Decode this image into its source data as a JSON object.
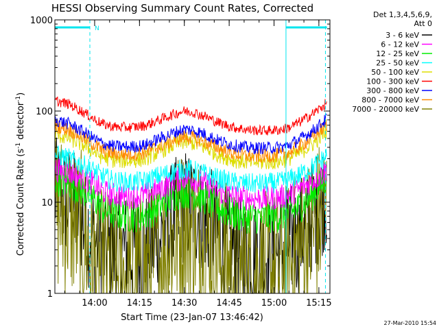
{
  "chart_data": {
    "type": "line",
    "title": "HESSI Observing Summary Count Rates, Corrected",
    "xlabel": "Start Time (23-Jan-07 13:46:42)",
    "ylabel_main": "Corrected Count Rate (s",
    "ylabel_sup1": "-1",
    "ylabel_mid": " detector",
    "ylabel_sup2": "-1",
    "ylabel_end": ")",
    "yscale": "log",
    "ylim": [
      1,
      1000
    ],
    "xlim_minutes": [
      0,
      92
    ],
    "y_ticks": [
      {
        "value": 1,
        "label": "1"
      },
      {
        "value": 10,
        "label": "10"
      },
      {
        "value": 100,
        "label": "100"
      },
      {
        "value": 1000,
        "label": "1000"
      }
    ],
    "x_ticks": [
      {
        "minute": 13.3,
        "label": "14:00"
      },
      {
        "minute": 28.3,
        "label": "14:15"
      },
      {
        "minute": 43.3,
        "label": "14:30"
      },
      {
        "minute": 58.3,
        "label": "14:45"
      },
      {
        "minute": 73.3,
        "label": "15:00"
      },
      {
        "minute": 88.3,
        "label": "15:15"
      }
    ],
    "legend": {
      "position": "top-right",
      "header1": "Det 1,3,4,5,6,9,",
      "header2": "Att 0",
      "entries": [
        {
          "label": "3 - 6 keV",
          "color": "#000000"
        },
        {
          "label": "6 - 12 keV",
          "color": "#ff00ff"
        },
        {
          "label": "12 - 25 keV",
          "color": "#00ee00"
        },
        {
          "label": "25 - 50 keV",
          "color": "#00ffff"
        },
        {
          "label": "50 - 100 keV",
          "color": "#dddd00"
        },
        {
          "label": "100 - 300 keV",
          "color": "#ff0000"
        },
        {
          "label": "300 - 800 keV",
          "color": "#0000ff"
        },
        {
          "label": "800 - 7000 keV",
          "color": "#ff8800"
        },
        {
          "label": "7000 - 20000 keV",
          "color": "#808000"
        }
      ]
    },
    "night_markers": {
      "color": "#00e5ee",
      "label": "N",
      "night_start_minute": 11.7,
      "night_end_minute": 77.3,
      "left_bar": [
        0,
        11.7
      ],
      "right_bar": [
        77.3,
        91
      ],
      "right_dash_minute": 90.5
    },
    "series": [
      {
        "name": "3 - 6 keV",
        "color": "#000000",
        "noise": 0.28,
        "points": [
          [
            0,
            12
          ],
          [
            5,
            10
          ],
          [
            10,
            6
          ],
          [
            13,
            4
          ],
          [
            16,
            3
          ],
          [
            20,
            3
          ],
          [
            25,
            3
          ],
          [
            30,
            3
          ],
          [
            35,
            4
          ],
          [
            40,
            7
          ],
          [
            43,
            9
          ],
          [
            46,
            9
          ],
          [
            50,
            7
          ],
          [
            55,
            4
          ],
          [
            60,
            3
          ],
          [
            65,
            2.6
          ],
          [
            70,
            2.6
          ],
          [
            75,
            3
          ],
          [
            78,
            3.5
          ],
          [
            82,
            4.5
          ],
          [
            86,
            7
          ],
          [
            90,
            12
          ],
          [
            91,
            13
          ]
        ]
      },
      {
        "name": "7000 - 20000 keV",
        "color": "#808000",
        "noise": 0.4,
        "points": [
          [
            0,
            8
          ],
          [
            5,
            7
          ],
          [
            10,
            4
          ],
          [
            13,
            2
          ],
          [
            16,
            1.7
          ],
          [
            20,
            1.6
          ],
          [
            25,
            1.6
          ],
          [
            30,
            1.7
          ],
          [
            35,
            2.5
          ],
          [
            40,
            4
          ],
          [
            43,
            5.5
          ],
          [
            46,
            5
          ],
          [
            50,
            4
          ],
          [
            55,
            2.5
          ],
          [
            60,
            1.8
          ],
          [
            65,
            1.6
          ],
          [
            70,
            1.6
          ],
          [
            75,
            1.8
          ],
          [
            78,
            2.2
          ],
          [
            82,
            3
          ],
          [
            86,
            4.5
          ],
          [
            90,
            7.5
          ],
          [
            91,
            9
          ]
        ]
      },
      {
        "name": "12 - 25 keV",
        "color": "#00ee00",
        "noise": 0.08,
        "points": [
          [
            0,
            18
          ],
          [
            5,
            16
          ],
          [
            10,
            13
          ],
          [
            13,
            11
          ],
          [
            16,
            8.5
          ],
          [
            20,
            7.5
          ],
          [
            25,
            7
          ],
          [
            30,
            7.2
          ],
          [
            35,
            9
          ],
          [
            40,
            12
          ],
          [
            43,
            13
          ],
          [
            46,
            12.5
          ],
          [
            50,
            11
          ],
          [
            55,
            8.5
          ],
          [
            60,
            7.3
          ],
          [
            65,
            6.8
          ],
          [
            70,
            6.8
          ],
          [
            75,
            7
          ],
          [
            78,
            7.5
          ],
          [
            82,
            9
          ],
          [
            86,
            12
          ],
          [
            90,
            17
          ],
          [
            91,
            19
          ]
        ]
      },
      {
        "name": "6 - 12 keV",
        "color": "#ff00ff",
        "noise": 0.06,
        "points": [
          [
            0,
            23
          ],
          [
            5,
            21
          ],
          [
            10,
            18
          ],
          [
            13,
            16
          ],
          [
            16,
            13
          ],
          [
            20,
            12
          ],
          [
            25,
            11.5
          ],
          [
            30,
            12
          ],
          [
            35,
            14
          ],
          [
            40,
            17
          ],
          [
            43,
            18.5
          ],
          [
            46,
            18
          ],
          [
            50,
            16
          ],
          [
            55,
            13
          ],
          [
            60,
            11.5
          ],
          [
            65,
            11
          ],
          [
            70,
            11
          ],
          [
            75,
            11.2
          ],
          [
            78,
            12
          ],
          [
            82,
            14
          ],
          [
            86,
            17
          ],
          [
            90,
            21
          ],
          [
            91,
            23
          ]
        ]
      },
      {
        "name": "25 - 50 keV",
        "color": "#00ffff",
        "noise": 0.05,
        "points": [
          [
            0,
            33
          ],
          [
            5,
            30
          ],
          [
            10,
            25
          ],
          [
            13,
            22
          ],
          [
            16,
            19
          ],
          [
            20,
            17
          ],
          [
            25,
            16.5
          ],
          [
            30,
            17
          ],
          [
            35,
            19.5
          ],
          [
            40,
            22
          ],
          [
            43,
            23
          ],
          [
            46,
            22.5
          ],
          [
            50,
            20.5
          ],
          [
            55,
            18
          ],
          [
            60,
            16.5
          ],
          [
            65,
            16
          ],
          [
            70,
            16
          ],
          [
            75,
            16.5
          ],
          [
            78,
            17.5
          ],
          [
            82,
            20
          ],
          [
            86,
            24
          ],
          [
            90,
            30
          ],
          [
            91,
            33
          ]
        ]
      },
      {
        "name": "50 - 100 keV",
        "color": "#dddd00",
        "noise": 0.04,
        "points": [
          [
            0,
            56
          ],
          [
            5,
            50
          ],
          [
            10,
            42
          ],
          [
            13,
            36
          ],
          [
            16,
            31
          ],
          [
            20,
            29
          ],
          [
            25,
            28.5
          ],
          [
            30,
            30
          ],
          [
            35,
            36
          ],
          [
            40,
            43
          ],
          [
            43,
            46
          ],
          [
            46,
            45
          ],
          [
            50,
            40
          ],
          [
            55,
            33
          ],
          [
            60,
            29
          ],
          [
            65,
            27.5
          ],
          [
            70,
            27.5
          ],
          [
            75,
            28
          ],
          [
            78,
            30
          ],
          [
            82,
            35
          ],
          [
            86,
            43
          ],
          [
            90,
            56
          ],
          [
            91,
            62
          ]
        ]
      },
      {
        "name": "800 - 7000 keV",
        "color": "#ff8800",
        "noise": 0.035,
        "points": [
          [
            0,
            70
          ],
          [
            5,
            62
          ],
          [
            10,
            50
          ],
          [
            13,
            43
          ],
          [
            16,
            37
          ],
          [
            20,
            34
          ],
          [
            25,
            33.5
          ],
          [
            30,
            35
          ],
          [
            35,
            41
          ],
          [
            40,
            48
          ],
          [
            43,
            52
          ],
          [
            46,
            51
          ],
          [
            50,
            46
          ],
          [
            55,
            39
          ],
          [
            60,
            34
          ],
          [
            65,
            32
          ],
          [
            70,
            32
          ],
          [
            75,
            33
          ],
          [
            78,
            35
          ],
          [
            82,
            41
          ],
          [
            86,
            51
          ],
          [
            90,
            66
          ],
          [
            91,
            72
          ]
        ]
      },
      {
        "name": "300 - 800 keV",
        "color": "#0000ff",
        "noise": 0.03,
        "points": [
          [
            0,
            80
          ],
          [
            5,
            72
          ],
          [
            10,
            58
          ],
          [
            13,
            50
          ],
          [
            16,
            44
          ],
          [
            20,
            41
          ],
          [
            25,
            40.5
          ],
          [
            30,
            42
          ],
          [
            35,
            50
          ],
          [
            40,
            58
          ],
          [
            43,
            63
          ],
          [
            46,
            62
          ],
          [
            50,
            56
          ],
          [
            55,
            47
          ],
          [
            60,
            42
          ],
          [
            65,
            39.5
          ],
          [
            70,
            39.5
          ],
          [
            75,
            40
          ],
          [
            78,
            42
          ],
          [
            82,
            49
          ],
          [
            86,
            60
          ],
          [
            90,
            77
          ],
          [
            91,
            83
          ]
        ]
      },
      {
        "name": "100 - 300 keV",
        "color": "#ff0000",
        "noise": 0.025,
        "points": [
          [
            0,
            130
          ],
          [
            5,
            118
          ],
          [
            10,
            95
          ],
          [
            13,
            82
          ],
          [
            16,
            72
          ],
          [
            20,
            67
          ],
          [
            25,
            66
          ],
          [
            30,
            69
          ],
          [
            35,
            80
          ],
          [
            40,
            93
          ],
          [
            43,
            100
          ],
          [
            46,
            98
          ],
          [
            50,
            88
          ],
          [
            55,
            74
          ],
          [
            60,
            66
          ],
          [
            65,
            62
          ],
          [
            70,
            61
          ],
          [
            75,
            62
          ],
          [
            78,
            65
          ],
          [
            82,
            76
          ],
          [
            86,
            92
          ],
          [
            90,
            115
          ],
          [
            91,
            125
          ]
        ]
      }
    ]
  },
  "footer": {
    "date_stamp": "27-Mar-2010 15:54"
  }
}
